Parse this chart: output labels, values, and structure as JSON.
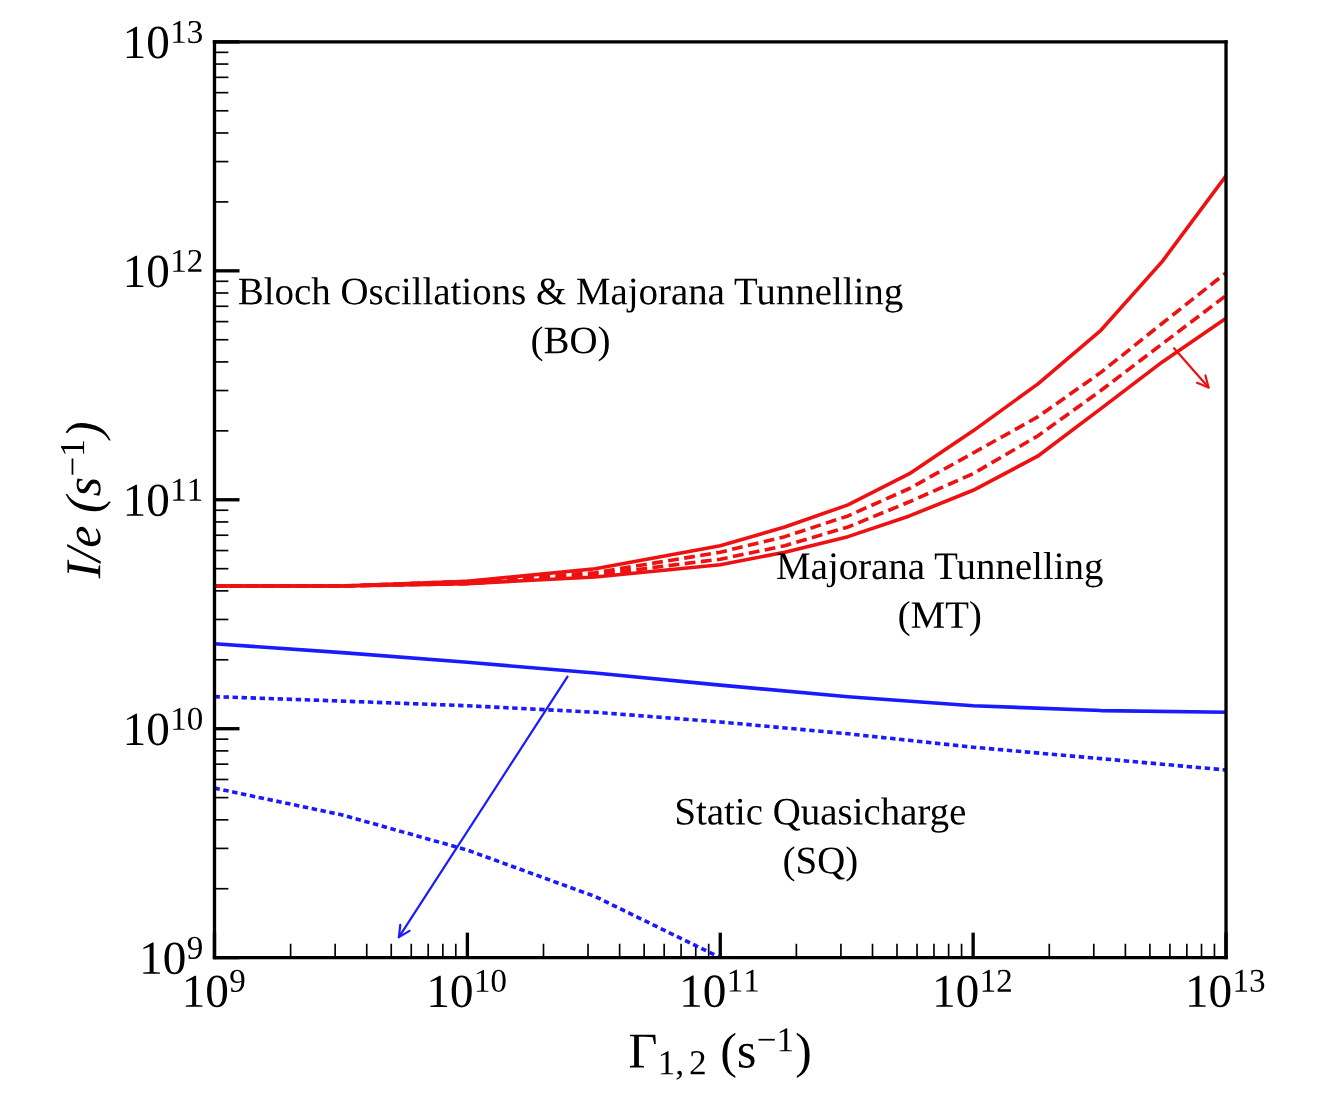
{
  "chart_data": {
    "type": "line",
    "xlabel": "Γ$_{1,2}$ (s$^{−1}$)",
    "ylabel": "I/e (s$^{−1}$)",
    "log": "xy",
    "xlim": [
      1000000000.0,
      10000000000000.0
    ],
    "ylim": [
      1000000000.0,
      10000000000000.0
    ],
    "xticks": [
      {
        "value": 1000000000.0,
        "label": "10$^{9}$"
      },
      {
        "value": 10000000000.0,
        "label": "10$^{10}$"
      },
      {
        "value": 100000000000.0,
        "label": "10$^{11}$"
      },
      {
        "value": 1000000000000.0,
        "label": "10$^{12}$"
      },
      {
        "value": 10000000000000.0,
        "label": "10$^{13}$"
      }
    ],
    "yticks": [
      {
        "value": 1000000000.0,
        "label": "10$^{9}$"
      },
      {
        "value": 10000000000.0,
        "label": "10$^{10}$"
      },
      {
        "value": 100000000000.0,
        "label": "10$^{11}$"
      },
      {
        "value": 1000000000000.0,
        "label": "10$^{12}$"
      },
      {
        "value": 10000000000000.0,
        "label": "10$^{13}$"
      }
    ],
    "grid": false,
    "legend": false,
    "marker": "none",
    "annotations": [
      "Bloch Oscillations & Majorana Tunnelling\n(BO)",
      "Majorana Tunnelling\n(MT)",
      "Static Quasicharge\n(SQ)"
    ],
    "series": [
      {
        "color": "#ee1111",
        "line_style": "solid",
        "x": [
          1000000000.0,
          3200000000.0,
          10000000000.0,
          32000000000.0,
          100000000000.0,
          180000000000.0,
          320000000000.0,
          560000000000.0,
          1000000000000.0,
          1800000000000.0,
          3200000000000.0,
          5600000000000.0,
          10000000000000.0
        ],
        "values": [
          42000000000.0,
          42000000000.0,
          44000000000.0,
          50000000000.0,
          63000000000.0,
          76000000000.0,
          95000000000.0,
          130000000000.0,
          200000000000.0,
          320000000000.0,
          550000000000.0,
          1100000000000.0,
          2600000000000.0
        ]
      },
      {
        "color": "#ee1111",
        "line_style": "dashed",
        "x": [
          1000000000.0,
          3200000000.0,
          10000000000.0,
          32000000000.0,
          100000000000.0,
          180000000000.0,
          320000000000.0,
          560000000000.0,
          1000000000000.0,
          1800000000000.0,
          3200000000000.0,
          5600000000000.0,
          10000000000000.0
        ],
        "values": [
          42000000000.0,
          42000000000.0,
          44000000000.0,
          48000000000.0,
          59000000000.0,
          69000000000.0,
          85000000000.0,
          112000000000.0,
          160000000000.0,
          230000000000.0,
          360000000000.0,
          590000000000.0,
          980000000000.0
        ]
      },
      {
        "color": "#ee1111",
        "line_style": "dashed",
        "x": [
          1000000000.0,
          3200000000.0,
          10000000000.0,
          32000000000.0,
          100000000000.0,
          180000000000.0,
          320000000000.0,
          560000000000.0,
          1000000000000.0,
          1800000000000.0,
          3200000000000.0,
          5600000000000.0,
          10000000000000.0
        ],
        "values": [
          42000000000.0,
          42000000000.0,
          43000000000.0,
          47000000000.0,
          55000000000.0,
          63000000000.0,
          76000000000.0,
          98000000000.0,
          130000000000.0,
          190000000000.0,
          300000000000.0,
          480000000000.0,
          780000000000.0
        ]
      },
      {
        "color": "#ee1111",
        "line_style": "solid",
        "x": [
          1000000000.0,
          3200000000.0,
          10000000000.0,
          32000000000.0,
          100000000000.0,
          180000000000.0,
          320000000000.0,
          560000000000.0,
          1000000000000.0,
          1800000000000.0,
          3200000000000.0,
          5600000000000.0,
          10000000000000.0
        ],
        "values": [
          42000000000.0,
          42000000000.0,
          43000000000.0,
          46000000000.0,
          52000000000.0,
          59000000000.0,
          69000000000.0,
          85000000000.0,
          110000000000.0,
          155000000000.0,
          250000000000.0,
          400000000000.0,
          620000000000.0
        ]
      },
      {
        "color": "#1a1aff",
        "line_style": "solid",
        "x": [
          1000000000.0,
          3200000000.0,
          10000000000.0,
          32000000000.0,
          100000000000.0,
          320000000000.0,
          1000000000000.0,
          3200000000000.0,
          10000000000000.0
        ],
        "values": [
          23500000000.0,
          21500000000.0,
          19500000000.0,
          17500000000.0,
          15500000000.0,
          13800000000.0,
          12600000000.0,
          12000000000.0,
          11800000000.0
        ]
      },
      {
        "color": "#1a1aff",
        "line_style": "dotted",
        "x": [
          1000000000.0,
          3200000000.0,
          10000000000.0,
          32000000000.0,
          100000000000.0,
          320000000000.0,
          1000000000000.0,
          3200000000000.0,
          10000000000000.0
        ],
        "values": [
          13800000000.0,
          13200000000.0,
          12600000000.0,
          11800000000.0,
          10700000000.0,
          9500000000.0,
          8300000000.0,
          7400000000.0,
          6600000000.0
        ]
      },
      {
        "color": "#1a1aff",
        "line_style": "dotted",
        "x": [
          1000000000.0,
          3200000000.0,
          10000000000.0,
          32000000000.0,
          100000000000.0
        ],
        "values": [
          5500000000.0,
          4200000000.0,
          2950000000.0,
          1850000000.0,
          1000000000.0
        ]
      }
    ]
  }
}
